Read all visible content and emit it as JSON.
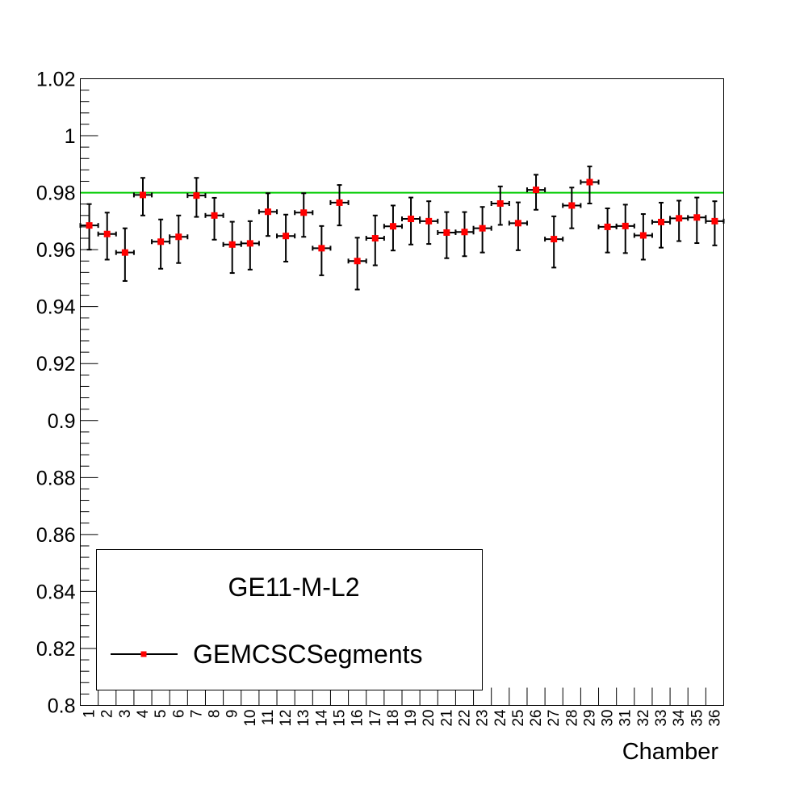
{
  "chart_data": {
    "type": "scatter",
    "title": "",
    "xlabel": "Chamber",
    "ylabel": "",
    "xlim": [
      0.5,
      36.5
    ],
    "ylim": [
      0.8,
      1.02
    ],
    "grid": false,
    "x_tick_labels": [
      "1",
      "2",
      "3",
      "4",
      "5",
      "6",
      "7",
      "8",
      "9",
      "10",
      "11",
      "12",
      "13",
      "14",
      "15",
      "16",
      "17",
      "18",
      "19",
      "20",
      "21",
      "22",
      "23",
      "24",
      "25",
      "26",
      "27",
      "28",
      "29",
      "30",
      "31",
      "32",
      "33",
      "34",
      "35",
      "36"
    ],
    "y_tick_labels": [
      "0.8",
      "0.82",
      "0.84",
      "0.86",
      "0.88",
      "0.9",
      "0.92",
      "0.94",
      "0.96",
      "0.98",
      "1",
      "1.02"
    ],
    "reference_line": {
      "y": 0.98,
      "color": "#00cc00"
    },
    "legend": {
      "header": "GE11-M-L2",
      "placement": "bottom-left",
      "entries": [
        "GEMCSCSegments"
      ]
    },
    "series": [
      {
        "name": "GEMCSCSegments",
        "color": "#ff0000",
        "x": [
          1,
          2,
          3,
          4,
          5,
          6,
          7,
          8,
          9,
          10,
          11,
          12,
          13,
          14,
          15,
          16,
          17,
          18,
          19,
          20,
          21,
          22,
          23,
          24,
          25,
          26,
          27,
          28,
          29,
          30,
          31,
          32,
          33,
          34,
          35,
          36
        ],
        "y": [
          0.9685,
          0.9655,
          0.959,
          0.9792,
          0.9628,
          0.9645,
          0.979,
          0.972,
          0.9618,
          0.9622,
          0.9733,
          0.9648,
          0.973,
          0.9605,
          0.9765,
          0.956,
          0.964,
          0.9682,
          0.9708,
          0.97,
          0.966,
          0.9662,
          0.9675,
          0.9762,
          0.9693,
          0.981,
          0.9637,
          0.9755,
          0.9837,
          0.968,
          0.9683,
          0.965,
          0.9697,
          0.971,
          0.9713,
          0.97
        ],
        "err_low": [
          0.0085,
          0.009,
          0.01,
          0.0072,
          0.0095,
          0.0092,
          0.0075,
          0.0085,
          0.01,
          0.0092,
          0.0085,
          0.009,
          0.0085,
          0.0095,
          0.008,
          0.01,
          0.0095,
          0.0085,
          0.009,
          0.008,
          0.009,
          0.0085,
          0.0085,
          0.0075,
          0.0095,
          0.007,
          0.01,
          0.008,
          0.0075,
          0.009,
          0.0095,
          0.0085,
          0.009,
          0.008,
          0.009,
          0.0085
        ],
        "err_high": [
          0.0075,
          0.0075,
          0.0085,
          0.006,
          0.0078,
          0.0075,
          0.0062,
          0.0062,
          0.008,
          0.0078,
          0.0065,
          0.0075,
          0.0068,
          0.0078,
          0.0062,
          0.0082,
          0.008,
          0.0073,
          0.0075,
          0.007,
          0.0072,
          0.007,
          0.0075,
          0.006,
          0.0073,
          0.0053,
          0.008,
          0.0063,
          0.0055,
          0.0065,
          0.0075,
          0.0075,
          0.0068,
          0.0062,
          0.007,
          0.007
        ]
      }
    ]
  }
}
